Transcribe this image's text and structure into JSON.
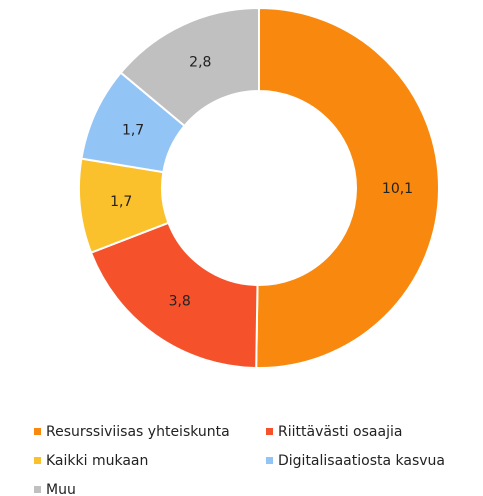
{
  "chart_data": {
    "type": "donut",
    "categories": [
      "Resurssiviisas yhteiskunta",
      "Riittävästi osaajia",
      "Kaikki mukaan",
      "Digitalisaatiosta kasvua",
      "Muu"
    ],
    "values": [
      10.1,
      3.8,
      1.7,
      1.7,
      2.8
    ],
    "value_labels": [
      "10,1",
      "3,8",
      "1,7",
      "1,7",
      "2,8"
    ],
    "colors": [
      "#f8890e",
      "#f5522c",
      "#fbc12d",
      "#92c4f6",
      "#c0c0c0"
    ],
    "legend": "bottom"
  }
}
